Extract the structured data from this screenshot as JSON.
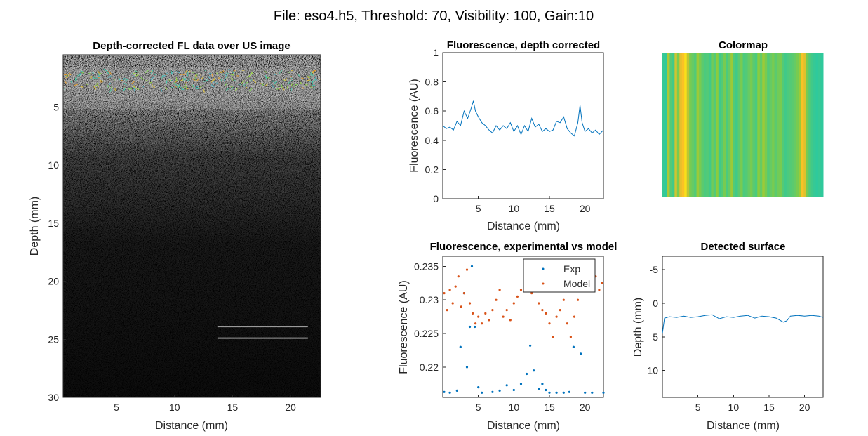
{
  "figure_title": "File: eso4.h5, Threshold: 70, Visibility: 100, Gain:10",
  "colors": {
    "blue": "#0072BD",
    "orange": "#D95319",
    "axis": "#262626"
  },
  "chart_data": [
    {
      "id": "us",
      "type": "heatmap",
      "title": "Depth-corrected FL data over US image",
      "xlabel": "Distance (mm)",
      "ylabel": "Depth (mm)",
      "xlim": [
        0.4,
        22.6
      ],
      "ylim": [
        0.5,
        30
      ],
      "y_reversed": true,
      "xticks": [
        5,
        10,
        15,
        20
      ],
      "yticks": [
        5,
        10,
        15,
        20,
        25,
        30
      ],
      "grid": false,
      "content": "grayscale ultrasound speckle with colored fluorescence overlay at surface; bright reflection lines near 24 and 25 mm depth"
    },
    {
      "id": "fl",
      "type": "line",
      "title": "Fluorescence, depth corrected",
      "xlabel": "Distance (mm)",
      "ylabel": "Fluorescence (AU)",
      "xlim": [
        0,
        22.6
      ],
      "ylim": [
        0,
        1
      ],
      "xticks": [
        5,
        10,
        15,
        20
      ],
      "yticks": [
        0,
        0.2,
        0.4,
        0.6,
        0.8,
        1
      ],
      "ytick_labels": [
        "0",
        "0.2",
        "0.4",
        "0.6",
        "0.8",
        "1"
      ],
      "grid": false,
      "series": [
        {
          "color": "#0072BD",
          "x": [
            0,
            0.5,
            1,
            1.5,
            2,
            2.5,
            3,
            3.5,
            4,
            4.3,
            4.6,
            5,
            5.5,
            6,
            6.5,
            7,
            7.5,
            8,
            8.5,
            9,
            9.5,
            10,
            10.5,
            11,
            11.5,
            12,
            12.5,
            13,
            13.5,
            14,
            14.5,
            15,
            15.5,
            16,
            16.5,
            17,
            17.5,
            18,
            18.5,
            19,
            19.3,
            19.6,
            20,
            20.5,
            21,
            21.5,
            22,
            22.6
          ],
          "y": [
            0.5,
            0.48,
            0.49,
            0.47,
            0.53,
            0.5,
            0.6,
            0.55,
            0.62,
            0.67,
            0.6,
            0.56,
            0.52,
            0.5,
            0.47,
            0.45,
            0.5,
            0.47,
            0.5,
            0.48,
            0.52,
            0.46,
            0.5,
            0.44,
            0.5,
            0.46,
            0.55,
            0.49,
            0.51,
            0.46,
            0.48,
            0.46,
            0.47,
            0.53,
            0.52,
            0.56,
            0.48,
            0.45,
            0.43,
            0.52,
            0.64,
            0.52,
            0.46,
            0.48,
            0.45,
            0.47,
            0.44,
            0.47
          ]
        }
      ]
    },
    {
      "id": "cmap",
      "type": "heatmap",
      "title": "Colormap",
      "stripes": [
        0.12,
        0.1,
        0.45,
        0.2,
        0.15,
        0.55,
        0.3,
        0.62,
        0.7,
        0.85,
        0.5,
        0.3,
        0.25,
        0.2,
        0.4,
        0.3,
        0.22,
        0.18,
        0.2,
        0.15,
        0.28,
        0.2,
        0.35,
        0.15,
        0.2,
        0.3,
        0.18,
        0.25,
        0.4,
        0.2,
        0.15,
        0.22,
        0.3,
        0.18,
        0.2,
        0.25,
        0.3,
        0.22,
        0.18,
        0.35,
        0.25,
        0.4,
        0.3,
        0.2,
        0.25,
        0.3,
        0.22,
        0.28,
        0.3,
        0.2,
        0.15,
        0.18,
        0.2,
        0.22,
        0.25,
        0.3,
        0.4,
        0.7,
        0.6,
        0.3,
        0.2,
        0.15,
        0.12,
        0.1,
        0.12,
        0.1
      ],
      "grid": false
    },
    {
      "id": "model",
      "type": "scatter",
      "title": "Fluorescence, experimental vs model",
      "xlabel": "Distance (mm)",
      "ylabel": "Fluorescence (AU)",
      "xlim": [
        0,
        22.6
      ],
      "ylim": [
        0.2155,
        0.2365
      ],
      "xticks": [
        5,
        10,
        15,
        20
      ],
      "yticks": [
        0.22,
        0.225,
        0.23,
        0.235
      ],
      "ytick_labels": [
        "0.22",
        "0.225",
        "0.23",
        "0.235"
      ],
      "legend": {
        "placement": "top-right",
        "entries": [
          "Exp",
          "Model"
        ]
      },
      "grid": false,
      "series": [
        {
          "name": "Exp",
          "color": "#0072BD",
          "x": [
            0.2,
            1,
            2,
            2.5,
            3,
            3.4,
            3.8,
            4.1,
            4.5,
            5,
            5.5,
            7,
            8,
            9,
            10,
            11,
            11.8,
            12.3,
            12.8,
            13.5,
            14,
            14.5,
            15,
            16,
            17,
            17.8,
            18.4,
            18.9,
            19.4,
            20,
            21,
            22.6
          ],
          "y": [
            0.2163,
            0.2162,
            0.2165,
            0.223,
            0.231,
            0.22,
            0.226,
            0.235,
            0.226,
            0.217,
            0.2162,
            0.2163,
            0.2165,
            0.2173,
            0.2166,
            0.2175,
            0.219,
            0.2232,
            0.2195,
            0.2168,
            0.2175,
            0.2166,
            0.2162,
            0.2162,
            0.2162,
            0.2163,
            0.223,
            0.235,
            0.222,
            0.2162,
            0.2162,
            0.2162
          ]
        },
        {
          "name": "Model",
          "color": "#D95319",
          "x": [
            0.2,
            0.6,
            1,
            1.4,
            1.8,
            2.2,
            2.6,
            3,
            3.4,
            3.8,
            4.2,
            4.6,
            5,
            5.5,
            6,
            6.5,
            7,
            7.5,
            8,
            8.5,
            9,
            9.5,
            10,
            10.5,
            11,
            11.5,
            12,
            12.5,
            13,
            13.5,
            14,
            14.5,
            15,
            15.5,
            16,
            16.5,
            17,
            17.5,
            18,
            18.5,
            19,
            19.5,
            20,
            20.5,
            21,
            21.5,
            22,
            22.4
          ],
          "y": [
            0.231,
            0.2285,
            0.2315,
            0.2295,
            0.232,
            0.2335,
            0.229,
            0.231,
            0.2345,
            0.2295,
            0.228,
            0.2265,
            0.2275,
            0.2265,
            0.228,
            0.227,
            0.2285,
            0.23,
            0.2315,
            0.2275,
            0.2285,
            0.227,
            0.2295,
            0.2305,
            0.2315,
            0.2355,
            0.2325,
            0.231,
            0.233,
            0.2295,
            0.2285,
            0.228,
            0.2265,
            0.2245,
            0.2275,
            0.2285,
            0.23,
            0.2265,
            0.2245,
            0.2275,
            0.23,
            0.2335,
            0.2355,
            0.232,
            0.233,
            0.2335,
            0.2315,
            0.2325
          ]
        }
      ]
    },
    {
      "id": "surface",
      "type": "line",
      "title": "Detected surface",
      "xlabel": "Distance (mm)",
      "ylabel": "Depth (mm)",
      "xlim": [
        0,
        22.6
      ],
      "ylim": [
        -7,
        14
      ],
      "y_reversed": true,
      "xticks": [
        5,
        10,
        15,
        20
      ],
      "yticks": [
        -5,
        0,
        5,
        10
      ],
      "ytick_labels": [
        "-5",
        "0",
        "5",
        "10"
      ],
      "grid": false,
      "series": [
        {
          "color": "#0072BD",
          "x": [
            0,
            0.3,
            1,
            2,
            3,
            4,
            5,
            6,
            7,
            8,
            9,
            10,
            11,
            12,
            13,
            14,
            15,
            16,
            17,
            17.5,
            18,
            19,
            20,
            21,
            22,
            22.6
          ],
          "y": [
            4.5,
            2.2,
            2.0,
            2.1,
            1.9,
            2.1,
            2.0,
            1.8,
            1.7,
            2.3,
            2.0,
            2.1,
            1.9,
            1.8,
            2.2,
            1.9,
            2.0,
            2.2,
            2.8,
            2.6,
            1.9,
            1.8,
            1.9,
            1.8,
            1.9,
            2.1
          ]
        }
      ]
    }
  ]
}
